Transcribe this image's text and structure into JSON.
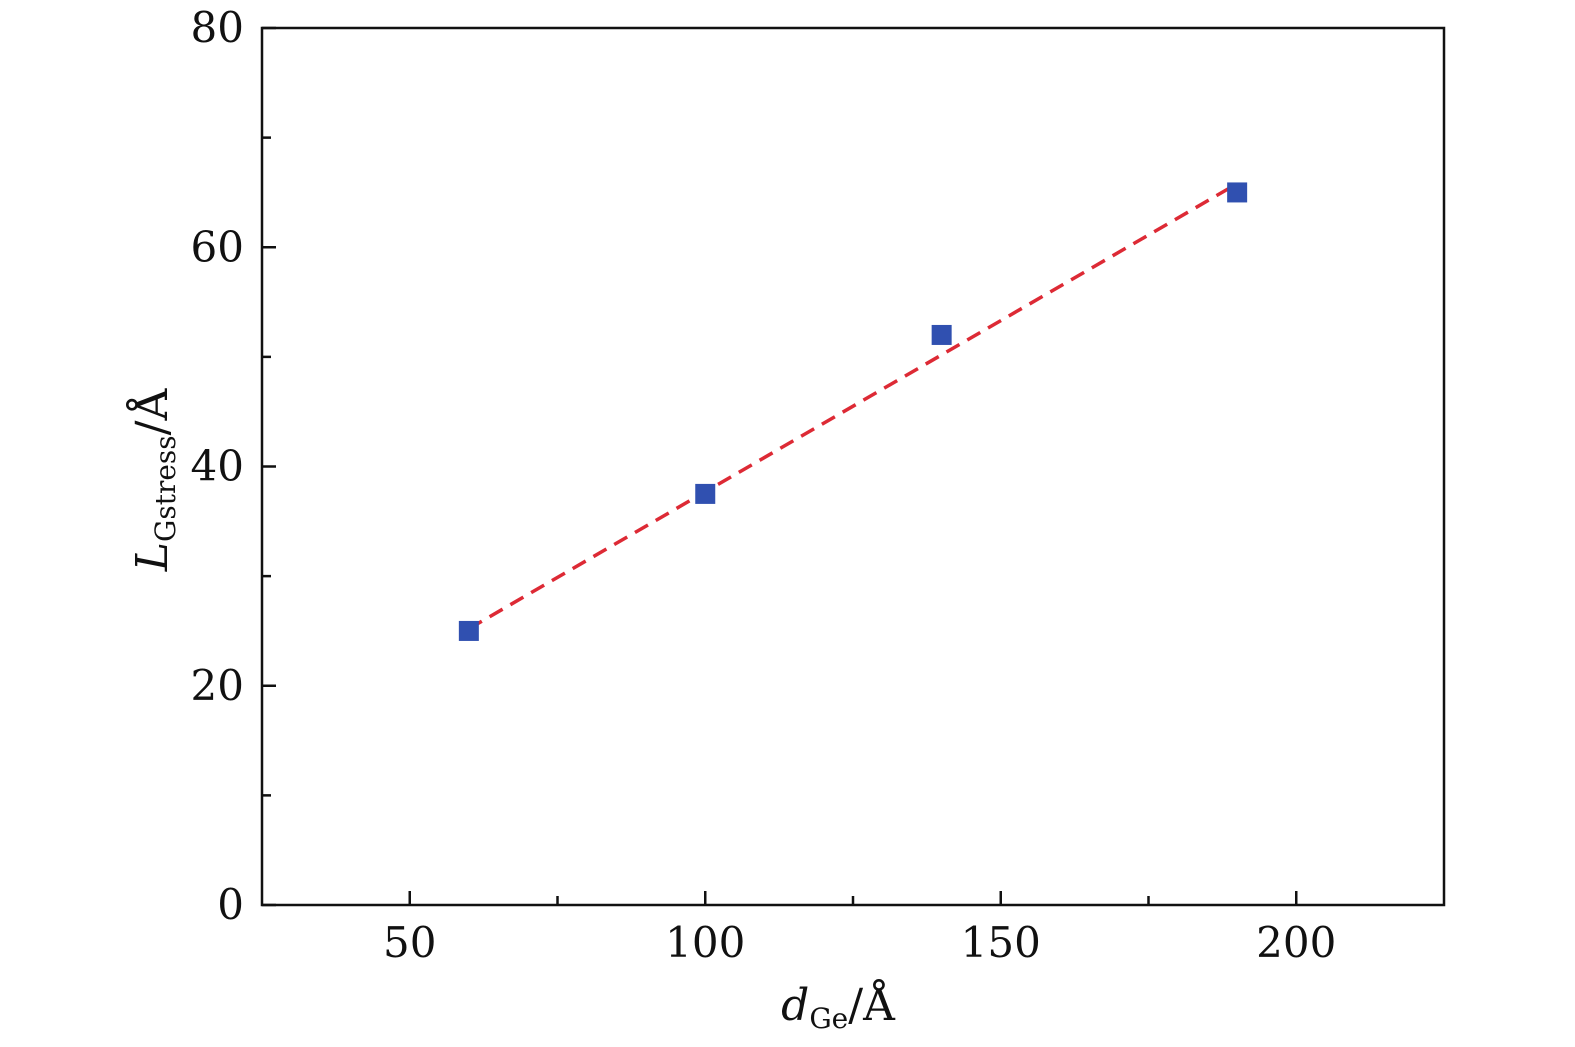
{
  "chart_data": {
    "type": "scatter",
    "title": "",
    "xlabel": {
      "main": "d",
      "sub": "Ge",
      "unit": "/Å"
    },
    "ylabel": {
      "main": "L",
      "sub": "Gstress",
      "unit": "/Å"
    },
    "xlim": [
      25,
      225
    ],
    "ylim": [
      0,
      80
    ],
    "x_ticks": [
      50,
      100,
      150,
      200
    ],
    "x_minor_ticks": [
      75,
      125,
      175
    ],
    "y_ticks": [
      0,
      20,
      40,
      60,
      80
    ],
    "y_minor_ticks": [
      10,
      30,
      50,
      70
    ],
    "grid": false,
    "series": [
      {
        "type": "scatter",
        "marker": "square",
        "color": "#3050b0",
        "points": [
          {
            "x": 60,
            "y": 25
          },
          {
            "x": 100,
            "y": 37.5
          },
          {
            "x": 140,
            "y": 52
          },
          {
            "x": 190,
            "y": 65
          }
        ]
      },
      {
        "type": "line",
        "style": "dashed",
        "color": "#dd2a35",
        "points": [
          {
            "x": 60,
            "y": 25.2
          },
          {
            "x": 190,
            "y": 65.8
          }
        ]
      }
    ]
  }
}
